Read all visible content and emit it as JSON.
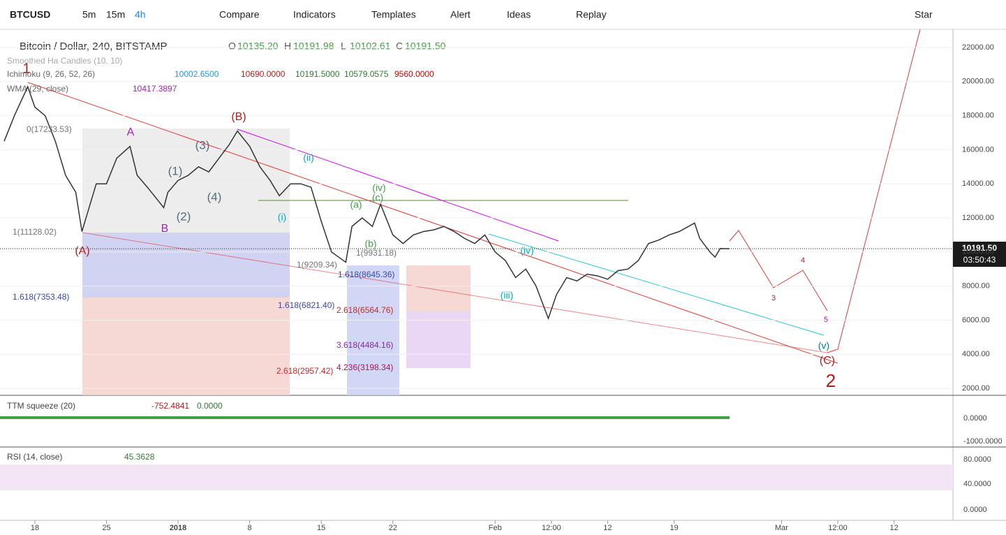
{
  "toolbar": {
    "symbol": "BTCUSD",
    "intervals": [
      "5m",
      "15m",
      "4h"
    ],
    "buttons": [
      "Compare",
      "Indicators",
      "Templates",
      "Alert",
      "Ideas",
      "Replay"
    ],
    "star": "Star"
  },
  "legend": {
    "title": "Bitcoin / Dollar, 240, BITSTAMP",
    "ohlc": [
      "O",
      "10135.20",
      "H",
      "10191.98",
      "L",
      "10102.61",
      "C",
      "10191.50"
    ],
    "ha": "Smoothed Ha Candles (10, 10)",
    "ichimoku": {
      "name": "Ichimoku (9, 26, 52, 26)",
      "values": [
        {
          "text": "10002.6500",
          "color": "#2196f3"
        },
        {
          "text": "10690.0000",
          "color": "#b71c1c"
        },
        {
          "text": "10191.5000",
          "color": "#2e7d32"
        },
        {
          "text": "10579.0575",
          "color": "#2e7d32"
        },
        {
          "text": "9560.0000",
          "color": "#d50000"
        }
      ]
    },
    "wma": {
      "name": "WMA (29, close)",
      "value": "10417.3897"
    }
  },
  "price_badge": {
    "price": "10191.50",
    "countdown": "03:50:43"
  },
  "chart_data": {
    "type": "line",
    "x": [
      -3,
      -2,
      -0.7,
      0,
      1,
      2,
      3,
      4,
      4.6,
      6,
      7,
      8,
      9.3,
      10,
      11,
      12.6,
      13,
      14,
      15,
      16,
      17,
      18,
      19,
      19.8,
      21,
      22,
      23,
      23.9,
      25,
      26,
      27,
      28,
      29,
      30.4,
      31,
      32,
      33,
      33.8,
      35,
      36,
      37,
      38,
      39,
      40,
      41,
      42,
      43,
      44,
      45,
      46,
      47,
      48,
      49,
      50.2,
      51,
      52,
      53,
      54,
      55,
      56,
      57,
      58,
      59,
      60,
      61,
      62,
      63,
      64.5,
      65,
      66,
      66.5,
      67,
      67.9
    ],
    "values": [
      16500,
      18000,
      19700,
      18500,
      18000,
      16500,
      14500,
      13500,
      11200,
      14000,
      14000,
      15500,
      16200,
      14500,
      13800,
      12600,
      13500,
      14200,
      14500,
      15000,
      14700,
      15500,
      16300,
      17100,
      16200,
      15000,
      14200,
      13300,
      14000,
      14000,
      13800,
      11800,
      10000,
      9400,
      11500,
      12000,
      11500,
      12800,
      11000,
      10500,
      11000,
      11200,
      11300,
      11500,
      11200,
      10800,
      10500,
      11000,
      10000,
      9500,
      8500,
      9000,
      8000,
      6100,
      7500,
      8500,
      8300,
      8700,
      8600,
      8400,
      8900,
      9000,
      9500,
      10500,
      10700,
      11000,
      11200,
      11700,
      10800,
      10000,
      9700,
      10200,
      10191.5
    ],
    "color": "#333333",
    "last": 10191.5,
    "xlim": [
      -3.41,
      89.76
    ],
    "ylim": [
      1590,
      23066
    ],
    "xticks": [
      {
        "value": 0,
        "label": "18"
      },
      {
        "value": 7,
        "label": "25"
      },
      {
        "value": 14,
        "label": "2018"
      },
      {
        "value": 21,
        "label": "8"
      },
      {
        "value": 28,
        "label": "15"
      },
      {
        "value": 35,
        "label": "22"
      },
      {
        "value": 45,
        "label": "Feb"
      },
      {
        "value": 50.5,
        "label": "12:00"
      },
      {
        "value": 56,
        "label": "12"
      },
      {
        "value": 62.5,
        "label": "19"
      },
      {
        "value": 73,
        "label": "Mar"
      },
      {
        "value": 78.5,
        "label": "12:00"
      },
      {
        "value": 84,
        "label": "12"
      }
    ],
    "yticks": [
      {
        "value": 2000,
        "label": "2000.00"
      },
      {
        "value": 4000,
        "label": "4000.00"
      },
      {
        "value": 6000,
        "label": "6000.00"
      },
      {
        "value": 8000,
        "label": "8000.00"
      },
      {
        "value": 10000,
        "label": "10000.00"
      },
      {
        "value": 12000,
        "label": "12000.00"
      },
      {
        "value": 14000,
        "label": "14000.00"
      },
      {
        "value": 16000,
        "label": "16000.00"
      },
      {
        "value": 18000,
        "label": "18000.00"
      },
      {
        "value": 20000,
        "label": "20000.00"
      },
      {
        "value": 22000,
        "label": "22000.00"
      }
    ]
  },
  "annotations": [
    {
      "text": "1",
      "color": "#b71c1c"
    },
    {
      "text": "(A)",
      "color": "#b71c1c"
    },
    {
      "text": "(B)",
      "color": "#b71c1c"
    },
    {
      "text": "(C)",
      "color": "#b71c1c"
    },
    {
      "text": "2",
      "color": "#b71c1c"
    },
    {
      "text": "A",
      "color": "#9c27b0"
    },
    {
      "text": "B",
      "color": "#9c27b0"
    },
    {
      "text": "(1)",
      "color": "#546e7a"
    },
    {
      "text": "(2)",
      "color": "#546e7a"
    },
    {
      "text": "(3)",
      "color": "#546e7a"
    },
    {
      "text": "(4)",
      "color": "#546e7a"
    },
    {
      "text": "(i)",
      "color": "#00acc1"
    },
    {
      "text": "(ii)",
      "color": "#00acc1"
    },
    {
      "text": "(iii)",
      "color": "#00acc1"
    },
    {
      "text": "(iv)",
      "color": "#00acc1"
    },
    {
      "text": "(v)",
      "color": "#00838f"
    },
    {
      "text": "(a)",
      "color": "#43a047"
    },
    {
      "text": "(b)",
      "color": "#43a047"
    },
    {
      "text": "(c)",
      "color": "#43a047"
    },
    {
      "text": "(iv)",
      "color": "#43a047"
    },
    {
      "text": "3",
      "color": "#b71c1c"
    },
    {
      "text": "4",
      "color": "#b71c1c"
    },
    {
      "text": "5",
      "color": "#9c27b0"
    }
  ],
  "fib_labels": [
    {
      "text": "0(17233.53)",
      "color": "#757575"
    },
    {
      "text": "1(11128.02)",
      "color": "#757575"
    },
    {
      "text": "1.618(7353.48)",
      "color": "#3949ab"
    },
    {
      "text": "1(9209.34)",
      "color": "#757575"
    },
    {
      "text": "1.618(6821.40)",
      "color": "#3949ab"
    },
    {
      "text": "1(9931.18)",
      "color": "#757575"
    },
    {
      "text": "1.618(8645.36)",
      "color": "#3949ab"
    },
    {
      "text": "2.618(6564.76)",
      "color": "#c62828"
    },
    {
      "text": "3.618(4484.16)",
      "color": "#8e24aa"
    },
    {
      "text": "4.236(3198.34)",
      "color": "#ad1457"
    },
    {
      "text": "2.618(2957.42)",
      "color": "#c62828"
    }
  ],
  "ttm": {
    "name": "TTM squeeze (20)",
    "values": [
      "-752.4841",
      "0.0000"
    ],
    "axis": [
      "0.0000",
      "-1000.0000"
    ]
  },
  "rsi": {
    "name": "RSI (14, close)",
    "value": "45.3628",
    "axis": [
      "80.0000",
      "40.0000",
      "0.0000"
    ]
  }
}
